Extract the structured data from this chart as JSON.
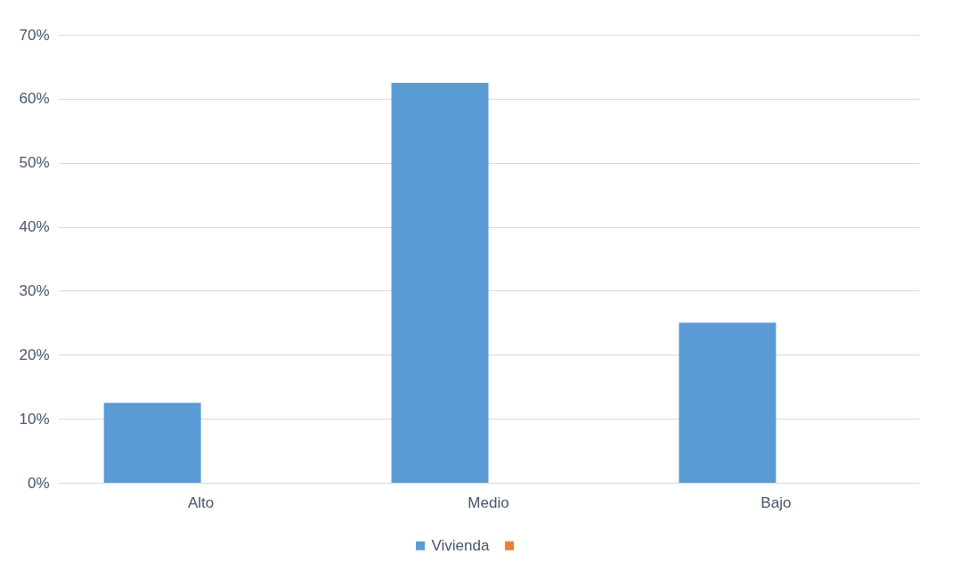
{
  "chart_data": {
    "type": "bar",
    "categories": [
      "Alto",
      "Medio",
      "Bajo"
    ],
    "series": [
      {
        "name": "Vivienda",
        "color": "#5b9bd5",
        "values": [
          12.5,
          62.5,
          25
        ]
      },
      {
        "color": "#ed7d31",
        "values": [
          null,
          null,
          null
        ]
      }
    ],
    "ylim": [
      0,
      70
    ],
    "yticks": [
      {
        "value": 0,
        "label": "0%"
      },
      {
        "value": 10,
        "label": "10%"
      },
      {
        "value": 20,
        "label": "20%"
      },
      {
        "value": 30,
        "label": "30%"
      },
      {
        "value": 40,
        "label": "40%"
      },
      {
        "value": 50,
        "label": "50%"
      },
      {
        "value": 60,
        "label": "60%"
      },
      {
        "value": 70,
        "label": "70%"
      }
    ],
    "grid": "y",
    "legend": "bottom"
  }
}
